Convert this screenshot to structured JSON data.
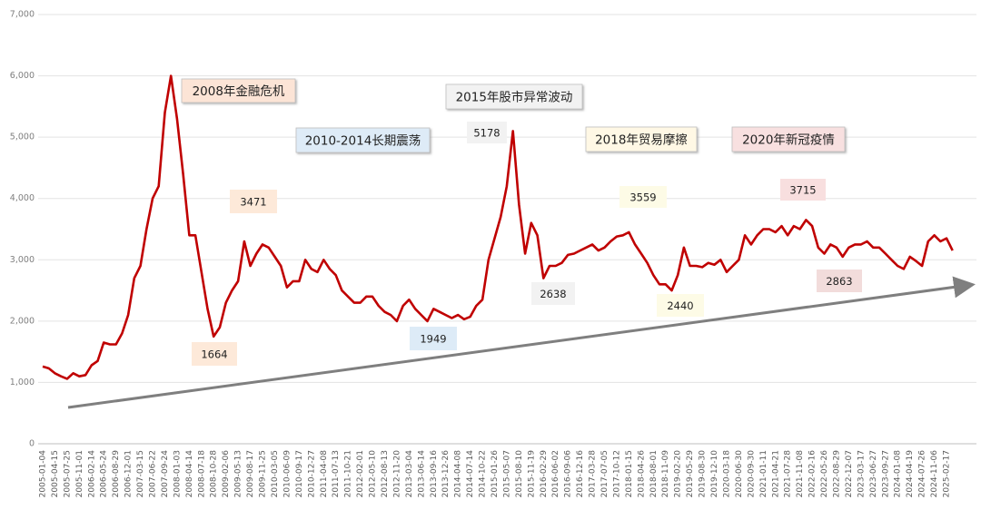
{
  "chart_data": {
    "type": "line",
    "color": "#c00000",
    "categories": [
      "2005-01-04",
      null,
      "2005-04-15",
      null,
      "2005-07-25",
      null,
      "2005-11-01",
      null,
      "2006-02-14",
      null,
      "2006-05-24",
      null,
      "2006-08-29",
      null,
      "2006-12-01",
      null,
      "2007-03-15",
      null,
      "2007-06-22",
      null,
      "2007-09-24",
      null,
      "2008-01-03",
      null,
      "2008-04-14",
      null,
      "2008-07-18",
      null,
      "2008-10-28",
      null,
      "2009-02-06",
      null,
      "2009-05-13",
      null,
      "2009-08-17",
      null,
      "2009-11-25",
      null,
      "2010-03-05",
      null,
      "2010-06-09",
      null,
      "2010-09-17",
      null,
      "2010-12-27",
      null,
      "2011-04-08",
      null,
      "2011-07-13",
      null,
      "2011-10-21",
      null,
      "2012-02-01",
      null,
      "2012-05-10",
      null,
      "2012-08-13",
      null,
      "2012-11-20",
      null,
      "2013-03-04",
      null,
      "2013-06-14",
      null,
      "2013-09-16",
      null,
      "2013-12-26",
      null,
      "2014-04-08",
      null,
      "2014-07-14",
      null,
      "2014-10-22",
      null,
      "2015-01-26",
      null,
      "2015-05-07",
      null,
      "2015-08-10",
      null,
      "2015-11-19",
      null,
      "2016-02-29",
      null,
      "2016-06-02",
      null,
      "2016-09-06",
      null,
      "2016-12-16",
      null,
      "2017-03-28",
      null,
      "2017-07-05",
      null,
      "2017-10-12",
      null,
      "2018-01-15",
      null,
      "2018-04-26",
      null,
      "2018-08-01",
      null,
      "2018-11-09",
      null,
      "2019-02-20",
      null,
      "2019-05-29",
      null,
      "2019-08-30",
      null,
      "2019-12-10",
      null,
      "2020-03-18",
      null,
      "2020-06-30",
      null,
      "2020-09-30",
      null,
      "2021-01-11",
      null,
      "2021-04-21",
      null,
      "2021-07-28",
      null,
      "2021-11-08",
      null,
      "2022-02-16",
      null,
      "2022-05-26",
      null,
      "2022-08-29",
      null,
      "2022-12-07",
      null,
      "2023-03-17",
      null,
      "2023-06-27",
      null,
      "2023-09-27",
      null,
      "2024-01-08",
      null,
      "2024-04-19",
      null,
      "2024-07-26",
      null,
      "2024-11-06",
      null,
      "2025-02-17",
      null
    ],
    "values": [
      1260,
      1230,
      1150,
      1100,
      1060,
      1150,
      1100,
      1120,
      1280,
      1350,
      1650,
      1620,
      1620,
      1800,
      2100,
      2700,
      2900,
      3500,
      4000,
      4200,
      5400,
      6000,
      5300,
      4400,
      3400,
      3400,
      2800,
      2200,
      1750,
      1900,
      2300,
      2500,
      2650,
      3300,
      2900,
      3100,
      3250,
      3200,
      3050,
      2900,
      2550,
      2650,
      2650,
      3000,
      2850,
      2800,
      3000,
      2850,
      2750,
      2500,
      2400,
      2300,
      2300,
      2400,
      2400,
      2250,
      2150,
      2100,
      2000,
      2250,
      2350,
      2200,
      2100,
      2000,
      2200,
      2150,
      2100,
      2050,
      2100,
      2030,
      2070,
      2250,
      2350,
      3000,
      3350,
      3700,
      4200,
      5100,
      3900,
      3100,
      3600,
      3400,
      2700,
      2900,
      2900,
      2950,
      3080,
      3100,
      3150,
      3200,
      3250,
      3150,
      3200,
      3300,
      3380,
      3400,
      3450,
      3250,
      3100,
      2950,
      2750,
      2600,
      2600,
      2500,
      2750,
      3200,
      2900,
      2900,
      2880,
      2950,
      2920,
      3000,
      2800,
      2900,
      3000,
      3400,
      3250,
      3400,
      3500,
      3500,
      3450,
      3550,
      3400,
      3550,
      3500,
      3650,
      3550,
      3200,
      3100,
      3250,
      3200,
      3050,
      3200,
      3250,
      3250,
      3300,
      3200,
      3200,
      3100,
      3000,
      2900,
      2850,
      3050,
      2980,
      2900,
      3300,
      3400,
      3300,
      3350,
      3150
    ],
    "ylim": [
      0,
      7000
    ],
    "yticks": [
      0,
      {
        "value": 1000,
        "label": "1,000"
      },
      {
        "value": 2000,
        "label": "2,000"
      },
      {
        "value": 3000,
        "label": "3,000"
      },
      {
        "value": 4000,
        "label": "4,000"
      },
      {
        "value": 5000,
        "label": "5,000"
      },
      {
        "value": 6000,
        "label": "6,000"
      },
      {
        "value": 7000,
        "label": "7,000"
      }
    ],
    "grid": true,
    "annotations": [
      {
        "text": "2008年金融危机",
        "color": "#fce4d6"
      },
      {
        "text": "2010-2014长期震荡",
        "color": "#deebf7"
      },
      {
        "text": "2015年股市异常波动",
        "color": "#f2f2f2"
      },
      {
        "text": "2018年贸易摩擦",
        "color": "#fff8e5"
      },
      {
        "text": "2020年新冠疫情",
        "color": "#f8e0e0"
      }
    ],
    "point_labels": [
      {
        "value": 3471,
        "color": "#fde9d9"
      },
      {
        "value": 1664,
        "color": "#fde9d9"
      },
      {
        "value": 1949,
        "color": "#ddebf7"
      },
      {
        "value": 5178,
        "color": "#f2f2f2"
      },
      {
        "value": 2638,
        "color": "#f2f2f2"
      },
      {
        "value": 3559,
        "color": "#fdfbe6"
      },
      {
        "value": 2440,
        "color": "#fdfbe6"
      },
      {
        "value": 3715,
        "color": "#f8dfdf"
      },
      {
        "value": 2863,
        "color": "#f2dcdb"
      }
    ]
  }
}
